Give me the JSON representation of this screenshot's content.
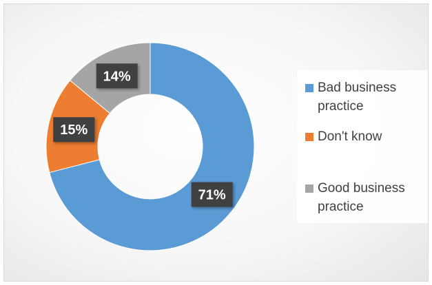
{
  "chart_data": {
    "type": "pie",
    "style": "donut",
    "categories": [
      "Bad business practice",
      "Don't know",
      "Good business practice"
    ],
    "values": [
      71,
      15,
      14
    ],
    "data_labels": [
      "71%",
      "15%",
      "14%"
    ],
    "colors": [
      "#5b9bd5",
      "#ed7d31",
      "#a5a5a5"
    ],
    "title": "",
    "legend": {
      "position": "right",
      "lines": [
        [
          "Bad business",
          "practice"
        ],
        [
          "Don't know"
        ],
        [
          "Good business",
          "practice"
        ]
      ]
    }
  }
}
